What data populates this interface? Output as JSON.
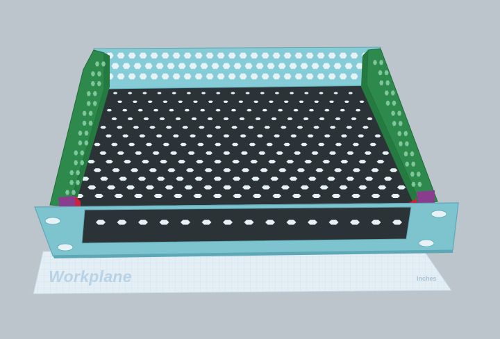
{
  "workplane": {
    "label": "Workplane",
    "unit_label": "Inches"
  },
  "colors": {
    "background": "#bcc4cc",
    "workplane_fill": "#e4eef5",
    "workplane_grid": "#cfe0ec",
    "faceplate": "#7ec4cf",
    "faceplate_edge": "#5ea8b5",
    "back_panel": "#86ccd6",
    "side_panel": "#2e8a4c",
    "floor": "#2c3337",
    "hole": "#e6f2f6",
    "bracket_red": "#d0213a",
    "bracket_purple": "#8a3d8c"
  },
  "icons": {
    "mounting_hole": "ear-hole-icon",
    "hex_hole": "hex-perforation-icon"
  }
}
